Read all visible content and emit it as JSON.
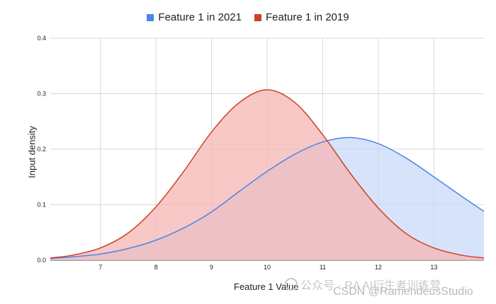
{
  "chart_data": {
    "type": "area",
    "title": "",
    "xlabel": "Feature 1 Value",
    "ylabel": "Input density",
    "xlim": [
      6.1,
      13.9
    ],
    "ylim": [
      0,
      0.4
    ],
    "x_ticks": [
      "7",
      "8",
      "9",
      "10",
      "11",
      "12",
      "13"
    ],
    "y_ticks": [
      "0.0",
      "0.1",
      "0.2",
      "0.3",
      "0.4"
    ],
    "grid": true,
    "legend_position": "top-center",
    "series": [
      {
        "name": "Feature 1 in 2021",
        "color": "#4a86e8",
        "fill": "#c9daf8",
        "x": [
          6.1,
          6.5,
          7,
          7.5,
          8,
          8.5,
          9,
          9.5,
          10,
          10.5,
          11,
          11.5,
          12,
          12.5,
          13,
          13.5,
          13.9
        ],
        "values": [
          0.003,
          0.006,
          0.011,
          0.021,
          0.036,
          0.058,
          0.087,
          0.124,
          0.16,
          0.191,
          0.213,
          0.221,
          0.21,
          0.184,
          0.15,
          0.115,
          0.088
        ]
      },
      {
        "name": "Feature 1 in 2019",
        "color": "#cc4125",
        "fill": "#f4b6b3",
        "x": [
          6.1,
          6.5,
          7,
          7.5,
          8,
          8.5,
          9,
          9.5,
          10,
          10.5,
          11,
          11.5,
          12,
          12.5,
          13,
          13.5,
          13.9
        ],
        "values": [
          0.004,
          0.009,
          0.022,
          0.049,
          0.096,
          0.16,
          0.231,
          0.284,
          0.307,
          0.284,
          0.226,
          0.156,
          0.094,
          0.048,
          0.022,
          0.009,
          0.004
        ]
      }
    ]
  },
  "watermark": {
    "line1": "公众号 · RA AI衍生者训练营",
    "line2": "CSDN @RamendeusStudio"
  }
}
